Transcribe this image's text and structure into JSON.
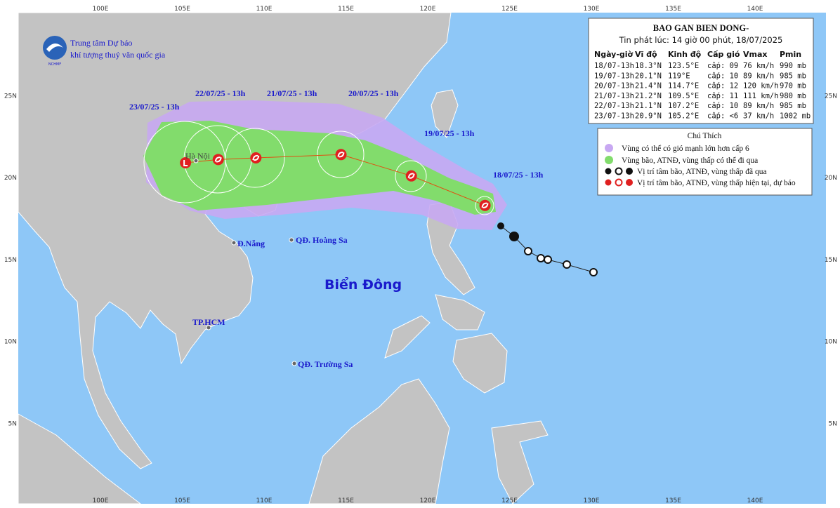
{
  "header": {
    "org_line1": "Trung tâm Dự báo",
    "org_line2": "khí tượng thuỷ văn quốc gia",
    "logo_text": "NCHMF"
  },
  "info": {
    "title": "BAO GAN BIEN DONG-",
    "issued": "Tin phát lúc: 14 giờ 00 phút, 18/07/2025",
    "columns": [
      "Ngày-giờ",
      "Vĩ độ",
      "Kinh độ",
      "Cấp gió",
      "Vmax",
      "Pmin"
    ],
    "rows": [
      [
        "18/07-13h",
        "18.3°N",
        "123.5°E",
        "cấp: 09",
        "76 km/h",
        "990 mb"
      ],
      [
        "19/07-13h",
        "20.1°N",
        "119°E",
        "cấp: 10",
        "89 km/h",
        "985 mb"
      ],
      [
        "20/07-13h",
        "21.4°N",
        "114.7°E",
        "cấp: 12",
        "120 km/h",
        "970 mb"
      ],
      [
        "21/07-13h",
        "21.2°N",
        "109.5°E",
        "cấp: 11",
        "111 km/h",
        "980 mb"
      ],
      [
        "22/07-13h",
        "21.1°N",
        "107.2°E",
        "cấp: 10",
        "89 km/h",
        "985 mb"
      ],
      [
        "23/07-13h",
        "20.9°N",
        "105.2°E",
        "cấp: <6",
        "37 km/h",
        "1002 mb"
      ]
    ]
  },
  "legend": {
    "title": "Chú Thích",
    "items": [
      "Vùng có thể có gió mạnh lớn hơn cấp 6",
      "Vùng bão, ATNĐ, vùng thấp có thể đi qua",
      "Vị trí tâm bão, ATNĐ, vùng thấp đã qua",
      "Vị trí tâm bão, ATNĐ, vùng thấp hiện tại, dự báo"
    ]
  },
  "track_labels": [
    "18/07/25 - 13h",
    "19/07/25 - 13h",
    "20/07/25 - 13h",
    "21/07/25 - 13h",
    "22/07/25 - 13h",
    "23/07/25 - 13h"
  ],
  "places": {
    "hanoi": "Hà Nội",
    "danang": "Đ.Nẵng",
    "hoangsa": "QĐ. Hoàng Sa",
    "sea": "Biển Đông",
    "hcm": "TP.HCM",
    "truongsa": "QĐ. Trường Sa"
  },
  "lon_ticks": [
    {
      "value": 100,
      "label": "100E"
    },
    {
      "value": 105,
      "label": "105E"
    },
    {
      "value": 110,
      "label": "110E"
    },
    {
      "value": 115,
      "label": "115E"
    },
    {
      "value": 120,
      "label": "120E"
    },
    {
      "value": 125,
      "label": "125E"
    },
    {
      "value": 130,
      "label": "130E"
    },
    {
      "value": 135,
      "label": "135E"
    },
    {
      "value": 140,
      "label": "140E"
    }
  ],
  "lat_ticks": [
    {
      "value": 25,
      "label": "25N"
    },
    {
      "value": 20,
      "label": "20N"
    },
    {
      "value": 15,
      "label": "15N"
    },
    {
      "value": 10,
      "label": "10N"
    },
    {
      "value": 5,
      "label": "5N"
    }
  ]
}
